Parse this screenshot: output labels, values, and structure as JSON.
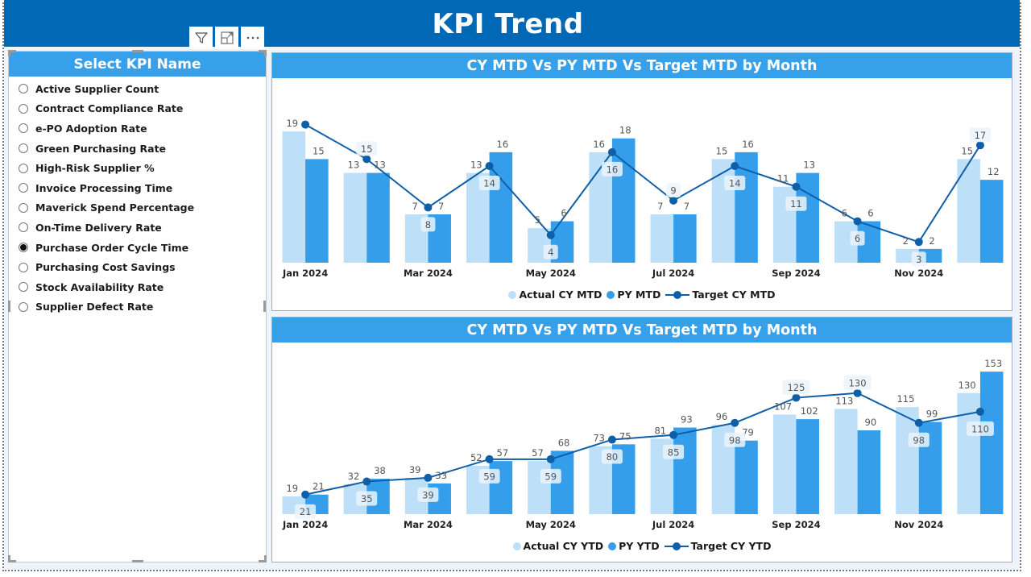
{
  "header": {
    "title": "KPI Trend"
  },
  "visual_toolbar": [
    {
      "icon": "filter-icon",
      "label": "Filter"
    },
    {
      "icon": "focus-mode-icon",
      "label": "Focus mode"
    },
    {
      "icon": "more-options-icon",
      "label": "More options"
    }
  ],
  "slicer": {
    "title": "Select KPI Name",
    "selected": "Purchase Order Cycle Time",
    "items": [
      {
        "label": "Active Supplier Count",
        "checked": false
      },
      {
        "label": "Contract Compliance Rate",
        "checked": false
      },
      {
        "label": "e-PO Adoption Rate",
        "checked": false
      },
      {
        "label": "Green Purchasing Rate",
        "checked": false
      },
      {
        "label": "High-Risk Supplier %",
        "checked": false
      },
      {
        "label": "Invoice Processing Time",
        "checked": false
      },
      {
        "label": "Maverick Spend Percentage",
        "checked": false
      },
      {
        "label": "On-Time Delivery Rate",
        "checked": false
      },
      {
        "label": "Purchase Order Cycle Time",
        "checked": true
      },
      {
        "label": "Purchasing Cost Savings",
        "checked": false
      },
      {
        "label": "Stock Availability Rate",
        "checked": false
      },
      {
        "label": "Supplier Defect Rate",
        "checked": false
      }
    ]
  },
  "colors": {
    "header": "#0068b5",
    "title_bar": "#37a0ea",
    "actual": "#bddff8",
    "py": "#349eeb",
    "target": "#0f5fa8"
  },
  "chart_data": [
    {
      "type": "bar",
      "title": "CY MTD Vs PY MTD Vs Target MTD by Month",
      "categories": [
        "Jan 2024",
        "Feb 2024",
        "Mar 2024",
        "Apr 2024",
        "May 2024",
        "Jun 2024",
        "Jul 2024",
        "Aug 2024",
        "Sep 2024",
        "Oct 2024",
        "Nov 2024",
        "Dec 2024"
      ],
      "tick_labels": [
        "Jan 2024",
        "",
        "Mar 2024",
        "",
        "May 2024",
        "",
        "Jul 2024",
        "",
        "Sep 2024",
        "",
        "Nov 2024",
        ""
      ],
      "series": [
        {
          "name": "Actual CY MTD",
          "kind": "bar",
          "values": [
            19,
            13,
            7,
            13,
            5,
            16,
            7,
            15,
            11,
            6,
            2,
            15
          ]
        },
        {
          "name": "PY MTD",
          "kind": "bar",
          "values": [
            15,
            13,
            7,
            16,
            6,
            18,
            7,
            16,
            13,
            6,
            2,
            12
          ]
        },
        {
          "name": "Target CY MTD",
          "kind": "line",
          "values": [
            20,
            15,
            8,
            14,
            4,
            16,
            9,
            14,
            11,
            6,
            3,
            17
          ],
          "labels": [
            "",
            "15",
            "8",
            "14",
            "4",
            "16",
            "9",
            "14",
            "11",
            "6",
            "3",
            "17"
          ]
        }
      ],
      "xlabel": "",
      "ylabel": "",
      "ylim": [
        0,
        26.6
      ],
      "grid": false,
      "legend": "bottom-center"
    },
    {
      "type": "bar",
      "title": "CY MTD Vs PY MTD Vs Target MTD by Month",
      "categories": [
        "Jan 2024",
        "Feb 2024",
        "Mar 2024",
        "Apr 2024",
        "May 2024",
        "Jun 2024",
        "Jul 2024",
        "Aug 2024",
        "Sep 2024",
        "Oct 2024",
        "Nov 2024",
        "Dec 2024"
      ],
      "tick_labels": [
        "Jan 2024",
        "",
        "Mar 2024",
        "",
        "May 2024",
        "",
        "Jul 2024",
        "",
        "Sep 2024",
        "",
        "Nov 2024",
        ""
      ],
      "series": [
        {
          "name": "Actual CY YTD",
          "kind": "bar",
          "values": [
            19,
            32,
            39,
            52,
            57,
            73,
            81,
            96,
            107,
            113,
            115,
            130
          ]
        },
        {
          "name": "PY YTD",
          "kind": "bar",
          "values": [
            21,
            38,
            33,
            57,
            68,
            75,
            93,
            79,
            102,
            90,
            99,
            153
          ]
        },
        {
          "name": "Target CY YTD",
          "kind": "line",
          "values": [
            21,
            35,
            39,
            59,
            59,
            80,
            85,
            98,
            125,
            130,
            98,
            110
          ],
          "labels": [
            "21",
            "35",
            "39",
            "59",
            "59",
            "80",
            "85",
            "98",
            "125",
            "130",
            "98",
            "110"
          ]
        }
      ],
      "xlabel": "",
      "ylabel": "",
      "ylim": [
        0,
        180
      ],
      "grid": false,
      "legend": "bottom-center"
    }
  ]
}
